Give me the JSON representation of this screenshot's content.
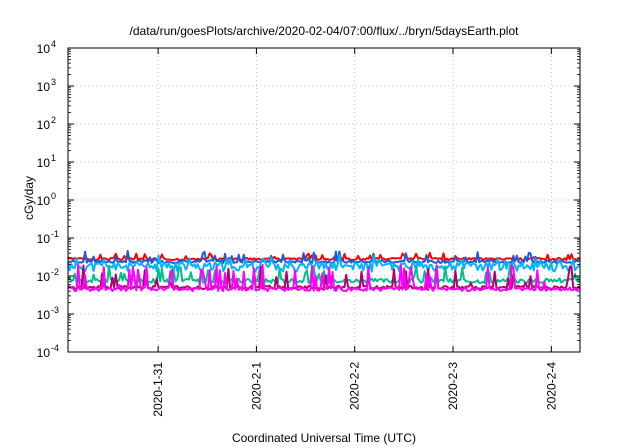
{
  "chart_data": {
    "type": "line",
    "title": "/data/run/goesPlots/archive/2020-02-04/07:00/flux/../bryn/5daysEarth.plot",
    "xlabel": "Coordinated Universal Time (UTC)",
    "ylabel": "cGy/day",
    "yscale": "log",
    "ylim": [
      0.0001,
      10000
    ],
    "y_ticks": [
      {
        "exp": -4,
        "base": "10",
        "sup": "-4"
      },
      {
        "exp": -3,
        "base": "10",
        "sup": "-3"
      },
      {
        "exp": -2,
        "base": "10",
        "sup": "-2"
      },
      {
        "exp": -1,
        "base": "10",
        "sup": "-1"
      },
      {
        "exp": 0,
        "base": "10",
        "sup": "0"
      },
      {
        "exp": 1,
        "base": "10",
        "sup": "1"
      },
      {
        "exp": 2,
        "base": "10",
        "sup": "2"
      },
      {
        "exp": 3,
        "base": "10",
        "sup": "3"
      },
      {
        "exp": 4,
        "base": "10",
        "sup": "4"
      }
    ],
    "xlim": [
      "2020-01-30T02:00",
      "2020-02-04T07:00"
    ],
    "x_ticks": [
      {
        "value": "2020-01-31T00:00",
        "label": "2020-1-31"
      },
      {
        "value": "2020-02-01T00:00",
        "label": "2020-2-1"
      },
      {
        "value": "2020-02-02T00:00",
        "label": "2020-2-2"
      },
      {
        "value": "2020-02-03T00:00",
        "label": "2020-2-3"
      },
      {
        "value": "2020-02-04T00:00",
        "label": "2020-2-4"
      }
    ],
    "grid": true,
    "series": [
      {
        "color": "#ff0000",
        "base": 0.028,
        "amp": 0.004,
        "spike": 0.012,
        "seed": 3
      },
      {
        "color": "#1e5adc",
        "base": 0.024,
        "amp": 0.004,
        "spike": 0.022,
        "seed": 7
      },
      {
        "color": "#00b4ff",
        "base": 0.018,
        "amp": 0.01,
        "spike": 0.015,
        "seed": 11
      },
      {
        "color": "#00c08c",
        "base": 0.0075,
        "amp": 0.002,
        "spike": 0.012,
        "seed": 17
      },
      {
        "color": "#b4006e",
        "base": 0.005,
        "amp": 0.001,
        "spike": 0.014,
        "seed": 23
      },
      {
        "color": "#ff00ff",
        "base": 0.0045,
        "amp": 0.001,
        "spike": 0.016,
        "seed": 29
      }
    ]
  }
}
